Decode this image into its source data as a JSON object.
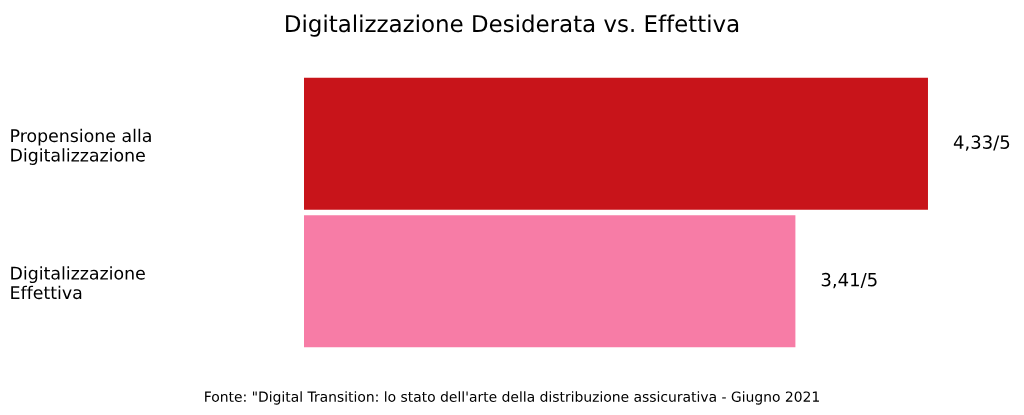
{
  "chart_data": {
    "type": "bar",
    "orientation": "horizontal",
    "title": "Digitalizzazione Desiderata vs. Effettiva",
    "categories": [
      "Propensione alla\nDigitalizzazione",
      "Digitalizzazione\nEffettiva"
    ],
    "values": [
      4.33,
      3.41
    ],
    "value_labels": [
      "4,33/5",
      "3,41/5"
    ],
    "colors": [
      "#c8141a",
      "#f77ca6"
    ],
    "tick_labels": "y",
    "grid": false,
    "legend": false,
    "annotations": [
      "Fonte: \"Digital Transition: lo stato dell'arte della distribuzione assicurativa - Giugno 2021"
    ]
  }
}
